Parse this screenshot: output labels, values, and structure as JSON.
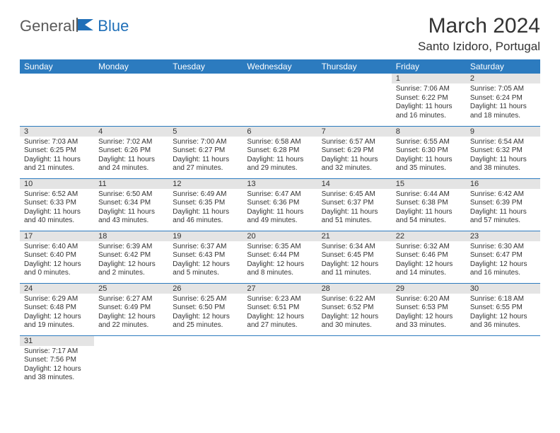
{
  "logo": {
    "text1": "General",
    "text2": "Blue"
  },
  "title": "March 2024",
  "location": "Santo Izidoro, Portugal",
  "colors": {
    "header_bg": "#2c7bbf",
    "header_text": "#ffffff",
    "daynum_bg": "#e4e4e4",
    "row_divider": "#2c7bbf",
    "logo_gray": "#5a5a5a",
    "logo_blue": "#1f6fb8"
  },
  "day_headers": [
    "Sunday",
    "Monday",
    "Tuesday",
    "Wednesday",
    "Thursday",
    "Friday",
    "Saturday"
  ],
  "weeks": [
    [
      {
        "empty": true
      },
      {
        "empty": true
      },
      {
        "empty": true
      },
      {
        "empty": true
      },
      {
        "empty": true
      },
      {
        "day": "1",
        "sunrise": "Sunrise: 7:06 AM",
        "sunset": "Sunset: 6:22 PM",
        "daylight1": "Daylight: 11 hours",
        "daylight2": "and 16 minutes."
      },
      {
        "day": "2",
        "sunrise": "Sunrise: 7:05 AM",
        "sunset": "Sunset: 6:24 PM",
        "daylight1": "Daylight: 11 hours",
        "daylight2": "and 18 minutes."
      }
    ],
    [
      {
        "day": "3",
        "sunrise": "Sunrise: 7:03 AM",
        "sunset": "Sunset: 6:25 PM",
        "daylight1": "Daylight: 11 hours",
        "daylight2": "and 21 minutes."
      },
      {
        "day": "4",
        "sunrise": "Sunrise: 7:02 AM",
        "sunset": "Sunset: 6:26 PM",
        "daylight1": "Daylight: 11 hours",
        "daylight2": "and 24 minutes."
      },
      {
        "day": "5",
        "sunrise": "Sunrise: 7:00 AM",
        "sunset": "Sunset: 6:27 PM",
        "daylight1": "Daylight: 11 hours",
        "daylight2": "and 27 minutes."
      },
      {
        "day": "6",
        "sunrise": "Sunrise: 6:58 AM",
        "sunset": "Sunset: 6:28 PM",
        "daylight1": "Daylight: 11 hours",
        "daylight2": "and 29 minutes."
      },
      {
        "day": "7",
        "sunrise": "Sunrise: 6:57 AM",
        "sunset": "Sunset: 6:29 PM",
        "daylight1": "Daylight: 11 hours",
        "daylight2": "and 32 minutes."
      },
      {
        "day": "8",
        "sunrise": "Sunrise: 6:55 AM",
        "sunset": "Sunset: 6:30 PM",
        "daylight1": "Daylight: 11 hours",
        "daylight2": "and 35 minutes."
      },
      {
        "day": "9",
        "sunrise": "Sunrise: 6:54 AM",
        "sunset": "Sunset: 6:32 PM",
        "daylight1": "Daylight: 11 hours",
        "daylight2": "and 38 minutes."
      }
    ],
    [
      {
        "day": "10",
        "sunrise": "Sunrise: 6:52 AM",
        "sunset": "Sunset: 6:33 PM",
        "daylight1": "Daylight: 11 hours",
        "daylight2": "and 40 minutes."
      },
      {
        "day": "11",
        "sunrise": "Sunrise: 6:50 AM",
        "sunset": "Sunset: 6:34 PM",
        "daylight1": "Daylight: 11 hours",
        "daylight2": "and 43 minutes."
      },
      {
        "day": "12",
        "sunrise": "Sunrise: 6:49 AM",
        "sunset": "Sunset: 6:35 PM",
        "daylight1": "Daylight: 11 hours",
        "daylight2": "and 46 minutes."
      },
      {
        "day": "13",
        "sunrise": "Sunrise: 6:47 AM",
        "sunset": "Sunset: 6:36 PM",
        "daylight1": "Daylight: 11 hours",
        "daylight2": "and 49 minutes."
      },
      {
        "day": "14",
        "sunrise": "Sunrise: 6:45 AM",
        "sunset": "Sunset: 6:37 PM",
        "daylight1": "Daylight: 11 hours",
        "daylight2": "and 51 minutes."
      },
      {
        "day": "15",
        "sunrise": "Sunrise: 6:44 AM",
        "sunset": "Sunset: 6:38 PM",
        "daylight1": "Daylight: 11 hours",
        "daylight2": "and 54 minutes."
      },
      {
        "day": "16",
        "sunrise": "Sunrise: 6:42 AM",
        "sunset": "Sunset: 6:39 PM",
        "daylight1": "Daylight: 11 hours",
        "daylight2": "and 57 minutes."
      }
    ],
    [
      {
        "day": "17",
        "sunrise": "Sunrise: 6:40 AM",
        "sunset": "Sunset: 6:40 PM",
        "daylight1": "Daylight: 12 hours",
        "daylight2": "and 0 minutes."
      },
      {
        "day": "18",
        "sunrise": "Sunrise: 6:39 AM",
        "sunset": "Sunset: 6:42 PM",
        "daylight1": "Daylight: 12 hours",
        "daylight2": "and 2 minutes."
      },
      {
        "day": "19",
        "sunrise": "Sunrise: 6:37 AM",
        "sunset": "Sunset: 6:43 PM",
        "daylight1": "Daylight: 12 hours",
        "daylight2": "and 5 minutes."
      },
      {
        "day": "20",
        "sunrise": "Sunrise: 6:35 AM",
        "sunset": "Sunset: 6:44 PM",
        "daylight1": "Daylight: 12 hours",
        "daylight2": "and 8 minutes."
      },
      {
        "day": "21",
        "sunrise": "Sunrise: 6:34 AM",
        "sunset": "Sunset: 6:45 PM",
        "daylight1": "Daylight: 12 hours",
        "daylight2": "and 11 minutes."
      },
      {
        "day": "22",
        "sunrise": "Sunrise: 6:32 AM",
        "sunset": "Sunset: 6:46 PM",
        "daylight1": "Daylight: 12 hours",
        "daylight2": "and 14 minutes."
      },
      {
        "day": "23",
        "sunrise": "Sunrise: 6:30 AM",
        "sunset": "Sunset: 6:47 PM",
        "daylight1": "Daylight: 12 hours",
        "daylight2": "and 16 minutes."
      }
    ],
    [
      {
        "day": "24",
        "sunrise": "Sunrise: 6:29 AM",
        "sunset": "Sunset: 6:48 PM",
        "daylight1": "Daylight: 12 hours",
        "daylight2": "and 19 minutes."
      },
      {
        "day": "25",
        "sunrise": "Sunrise: 6:27 AM",
        "sunset": "Sunset: 6:49 PM",
        "daylight1": "Daylight: 12 hours",
        "daylight2": "and 22 minutes."
      },
      {
        "day": "26",
        "sunrise": "Sunrise: 6:25 AM",
        "sunset": "Sunset: 6:50 PM",
        "daylight1": "Daylight: 12 hours",
        "daylight2": "and 25 minutes."
      },
      {
        "day": "27",
        "sunrise": "Sunrise: 6:23 AM",
        "sunset": "Sunset: 6:51 PM",
        "daylight1": "Daylight: 12 hours",
        "daylight2": "and 27 minutes."
      },
      {
        "day": "28",
        "sunrise": "Sunrise: 6:22 AM",
        "sunset": "Sunset: 6:52 PM",
        "daylight1": "Daylight: 12 hours",
        "daylight2": "and 30 minutes."
      },
      {
        "day": "29",
        "sunrise": "Sunrise: 6:20 AM",
        "sunset": "Sunset: 6:53 PM",
        "daylight1": "Daylight: 12 hours",
        "daylight2": "and 33 minutes."
      },
      {
        "day": "30",
        "sunrise": "Sunrise: 6:18 AM",
        "sunset": "Sunset: 6:55 PM",
        "daylight1": "Daylight: 12 hours",
        "daylight2": "and 36 minutes."
      }
    ],
    [
      {
        "day": "31",
        "sunrise": "Sunrise: 7:17 AM",
        "sunset": "Sunset: 7:56 PM",
        "daylight1": "Daylight: 12 hours",
        "daylight2": "and 38 minutes."
      },
      {
        "empty": true
      },
      {
        "empty": true
      },
      {
        "empty": true
      },
      {
        "empty": true
      },
      {
        "empty": true
      },
      {
        "empty": true
      }
    ]
  ]
}
